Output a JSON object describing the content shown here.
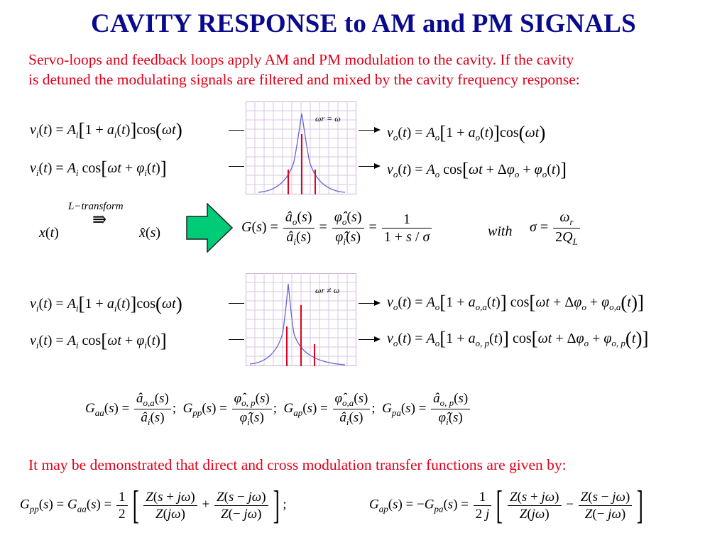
{
  "title": "CAVITY RESPONSE to AM and PM SIGNALS",
  "intro": {
    "line1": "Servo-loops and feedback loops apply AM and PM modulation to the cavity. If the cavity",
    "line2": "is detuned the modulating signals are filtered and mixed by the cavity frequency response:"
  },
  "plot_top": {
    "label": "ωr = ω"
  },
  "plot_bottom": {
    "label": "ωr ≠ ω"
  },
  "transform_label": "L−transform",
  "with_label": "with",
  "footnote": "It may be demonstrated that direct and cross modulation transfer functions are given by:",
  "colors": {
    "title": "#0a0a8c",
    "text_red": "#e0001a",
    "arrow_fill": "#00cc77",
    "plot_curve": "#6666cc",
    "plot_lines": "#e0001a",
    "grid": "#c9b0d6"
  }
}
